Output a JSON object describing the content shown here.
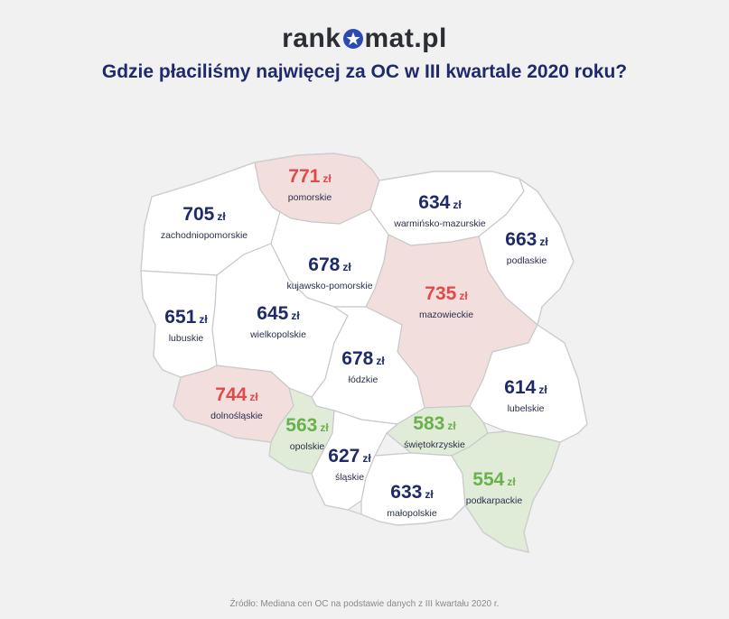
{
  "brand": {
    "left": "rank",
    "right": "mat.pl"
  },
  "title": "Gdzie płaciliśmy najwięcej za OC w III kwartale 2020 roku?",
  "colors": {
    "high": "#e24a4a",
    "low": "#6ab04c",
    "normal": "#1f2a6b"
  },
  "map": {
    "unit": "zł",
    "regions": [
      {
        "name": "pomorskie",
        "price": "771",
        "category": "high"
      },
      {
        "name": "zachodniopomorskie",
        "price": "705",
        "category": "normal"
      },
      {
        "name": "warmińsko-mazurskie",
        "price": "634",
        "category": "normal"
      },
      {
        "name": "podlaskie",
        "price": "663",
        "category": "normal"
      },
      {
        "name": "kujawsko-pomorskie",
        "price": "678",
        "category": "normal"
      },
      {
        "name": "mazowieckie",
        "price": "735",
        "category": "high"
      },
      {
        "name": "lubuskie",
        "price": "651",
        "category": "normal"
      },
      {
        "name": "wielkopolskie",
        "price": "645",
        "category": "normal"
      },
      {
        "name": "łódzkie",
        "price": "678",
        "category": "normal"
      },
      {
        "name": "lubelskie",
        "price": "614",
        "category": "normal"
      },
      {
        "name": "dolnośląskie",
        "price": "744",
        "category": "high"
      },
      {
        "name": "opolskie",
        "price": "563",
        "category": "low"
      },
      {
        "name": "świętokrzyskie",
        "price": "583",
        "category": "low"
      },
      {
        "name": "śląskie",
        "price": "627",
        "category": "normal"
      },
      {
        "name": "małopolskie",
        "price": "633",
        "category": "normal"
      },
      {
        "name": "podkarpackie",
        "price": "554",
        "category": "low"
      }
    ]
  },
  "footer": "Źródło: Mediana cen OC na podstawie danych z III kwartału 2020 r."
}
